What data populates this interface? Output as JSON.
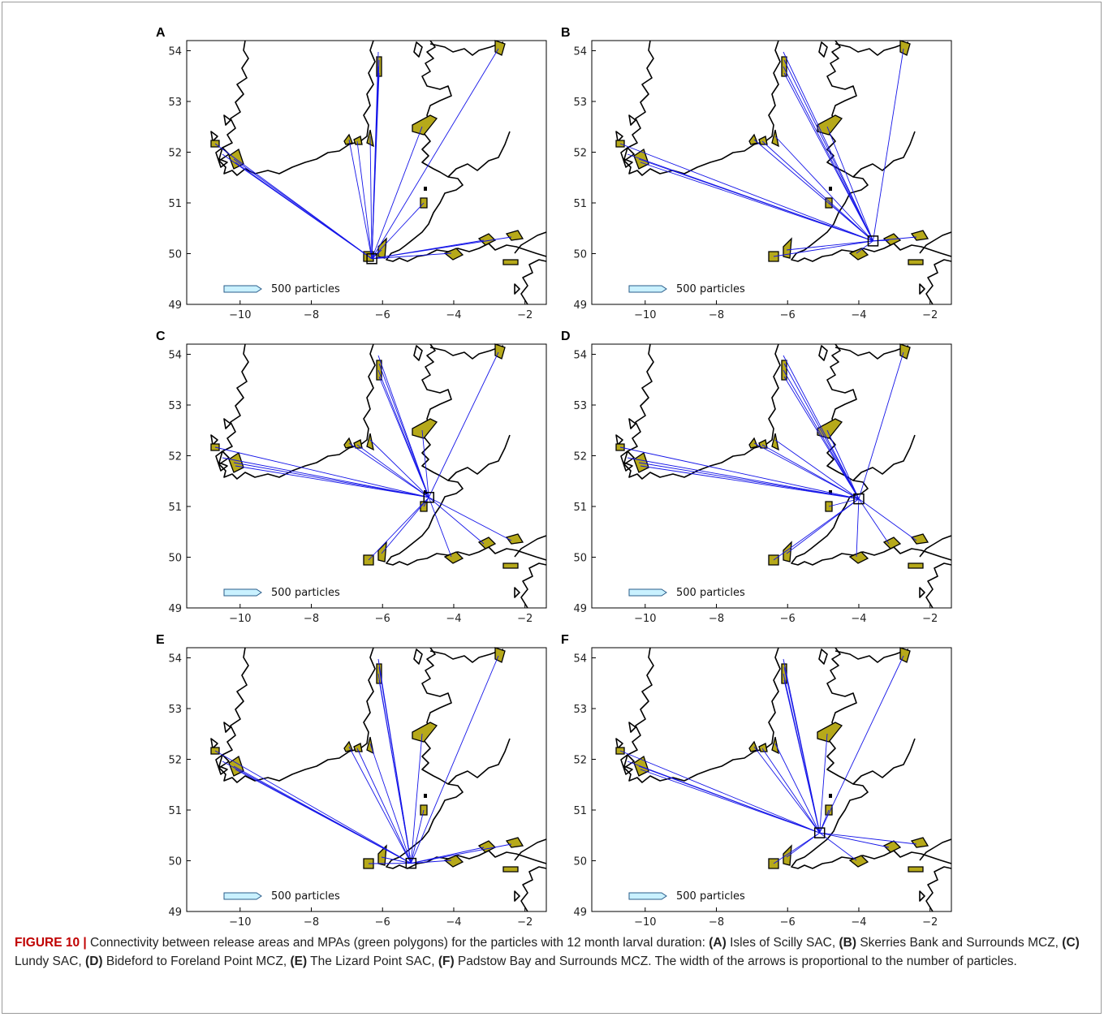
{
  "figure": {
    "panels": [
      {
        "letter": "A",
        "title": "Isles of Scilly SAC"
      },
      {
        "letter": "B",
        "title": "Skerries Bank and Surrounds MCZ"
      },
      {
        "letter": "C",
        "title": "Lundy SAC"
      },
      {
        "letter": "D",
        "title": "Bideford to Foreland Point MCZ"
      },
      {
        "letter": "E",
        "title": "The Lizard Point SAC"
      },
      {
        "letter": "F",
        "title": "Padstow Bay and Surrounds MCZ"
      }
    ],
    "legend_label": "500 particles",
    "x_ticks": [
      "−10",
      "−8",
      "−6",
      "−4",
      "−2"
    ],
    "y_ticks": [
      "54",
      "53",
      "52",
      "51",
      "50",
      "49"
    ]
  },
  "colors": {
    "mpa_fill": "#b6a91a",
    "arrow": "#1515e8",
    "legend_arrow": "#c9f1ff"
  },
  "chart_data": [
    {
      "type": "map",
      "panel": "A",
      "release_area": "Isles of Scilly SAC",
      "release_lon": -6.3,
      "release_lat": 49.9,
      "xlim": [
        -11.5,
        -1.4
      ],
      "ylim": [
        49,
        54.2
      ]
    },
    {
      "type": "map",
      "panel": "B",
      "release_area": "Skerries Bank and Surrounds MCZ",
      "release_lon": -3.6,
      "release_lat": 50.25,
      "xlim": [
        -11.5,
        -1.4
      ],
      "ylim": [
        49,
        54.2
      ]
    },
    {
      "type": "map",
      "panel": "C",
      "release_area": "Lundy SAC",
      "release_lon": -4.7,
      "release_lat": 51.18,
      "xlim": [
        -11.5,
        -1.4
      ],
      "ylim": [
        49,
        54.2
      ]
    },
    {
      "type": "map",
      "panel": "D",
      "release_area": "Bideford to Foreland Point MCZ",
      "release_lon": -4.0,
      "release_lat": 51.15,
      "xlim": [
        -11.5,
        -1.4
      ],
      "ylim": [
        49,
        54.2
      ]
    },
    {
      "type": "map",
      "panel": "E",
      "release_area": "The Lizard Point SAC",
      "release_lon": -5.2,
      "release_lat": 49.95,
      "xlim": [
        -11.5,
        -1.4
      ],
      "ylim": [
        49,
        54.2
      ]
    },
    {
      "type": "map",
      "panel": "F",
      "release_area": "Padstow Bay and Surrounds MCZ",
      "release_lon": -5.1,
      "release_lat": 50.55,
      "xlim": [
        -11.5,
        -1.4
      ],
      "ylim": [
        49,
        54.2
      ]
    }
  ],
  "caption": {
    "label": "FIGURE 10 |",
    "intro": " Connectivity between release areas and MPAs (green polygons) for the particles with 12 month larval duration: ",
    "items": [
      {
        "key": "(A)",
        "text": " Isles of Scilly SAC, "
      },
      {
        "key": "(B)",
        "text": " Skerries Bank and Surrounds MCZ, "
      },
      {
        "key": "(C)",
        "text": " Lundy SAC, "
      },
      {
        "key": "(D)",
        "text": " Bideford to Foreland Point MCZ, "
      },
      {
        "key": "(E)",
        "text": " The Lizard Point SAC, "
      },
      {
        "key": "(F)",
        "text": " Padstow Bay and Surrounds MCZ."
      }
    ],
    "outro": " The width of the arrows is proportional to the number of particles."
  }
}
